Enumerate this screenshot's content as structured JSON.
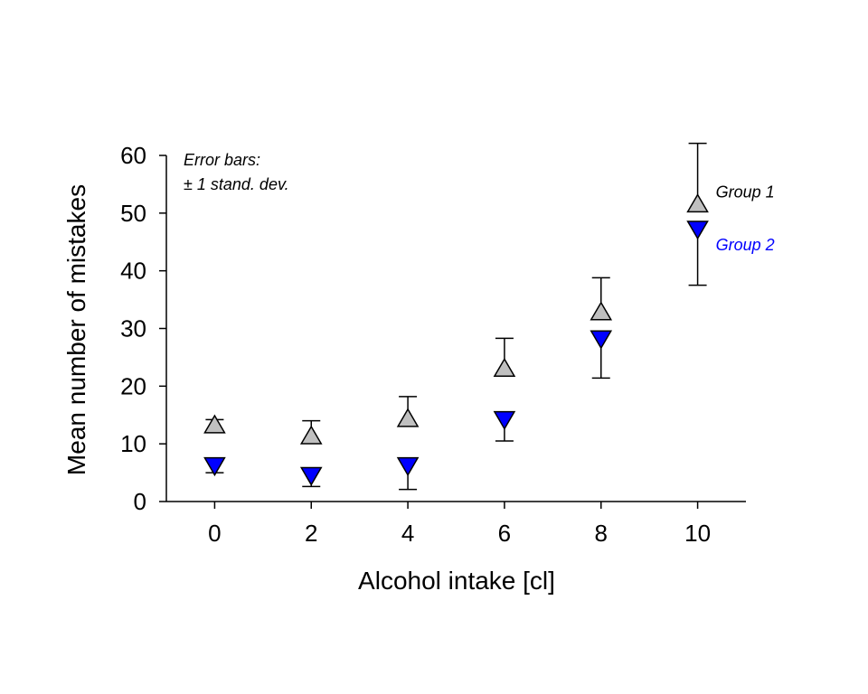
{
  "chart_data": {
    "type": "scatter",
    "xlabel": "Alcohol intake [cl]",
    "ylabel": "Mean number of mistakes",
    "xlim": [
      -1,
      11
    ],
    "ylim": [
      0,
      60
    ],
    "xticks": [
      0,
      2,
      4,
      6,
      8,
      10
    ],
    "yticks": [
      0,
      10,
      20,
      30,
      40,
      50,
      60
    ],
    "x": [
      0,
      2,
      4,
      6,
      8,
      10
    ],
    "grid": false,
    "legend_position": "right",
    "note": [
      "Error bars:",
      "± 1 stand. dev."
    ],
    "series": [
      {
        "name": "Group 1",
        "marker": "triangle-up",
        "color": "#c0c0c0",
        "label_color": "#000000",
        "values": [
          13.2,
          11.3,
          14.3,
          23.0,
          32.8,
          51.5
        ],
        "error": [
          1.0,
          2.7,
          3.9,
          5.3,
          6.0,
          10.6
        ],
        "error_side": "up"
      },
      {
        "name": "Group 2",
        "marker": "triangle-down",
        "color": "#0000ff",
        "label_color": "#0000ff",
        "values": [
          6.3,
          4.6,
          6.3,
          14.3,
          28.3,
          47.3
        ],
        "error": [
          1.3,
          2.0,
          4.2,
          3.8,
          6.9,
          9.8
        ],
        "error_side": "down"
      }
    ]
  }
}
